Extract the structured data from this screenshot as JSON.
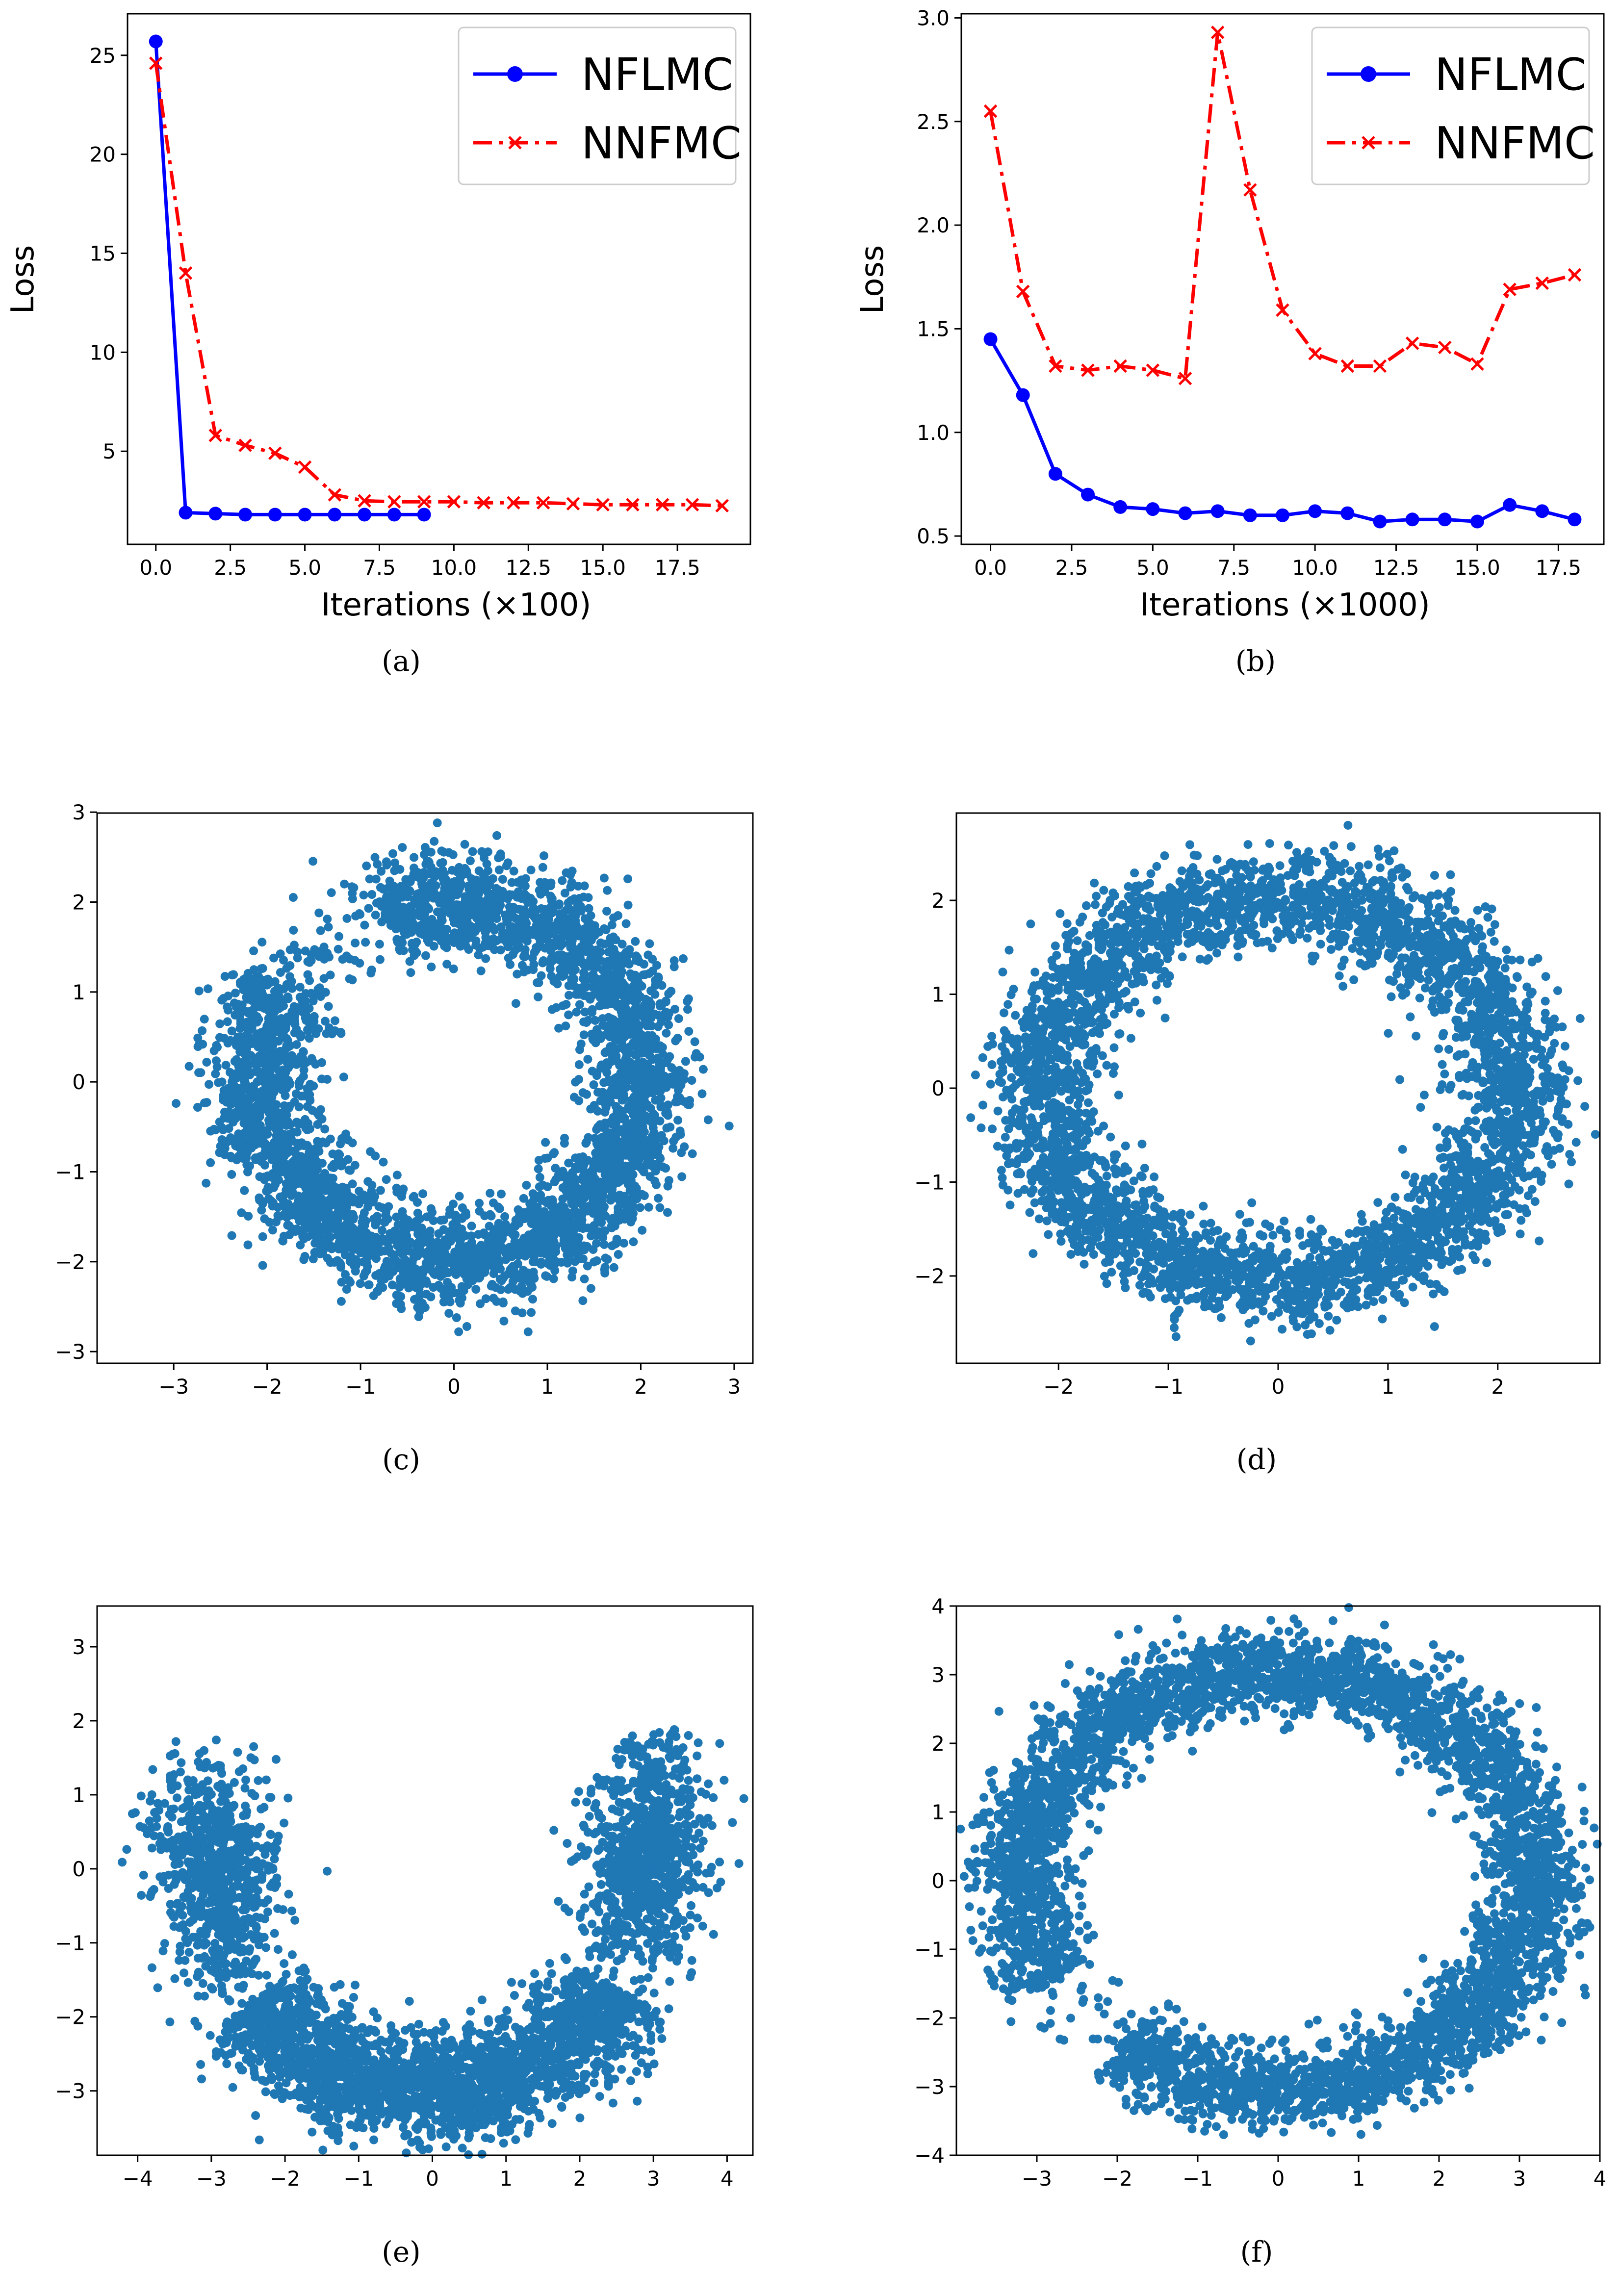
{
  "chart_data": [
    {
      "id": "a",
      "type": "line",
      "caption": "(a)",
      "xlabel": "Iterations (×100)",
      "ylabel": "Loss",
      "xlim": [
        -0.95,
        19.95
      ],
      "ylim": [
        0.3,
        27.1
      ],
      "xticks": [
        0.0,
        2.5,
        5.0,
        7.5,
        10.0,
        12.5,
        15.0,
        17.5
      ],
      "xtick_labels": [
        "0.0",
        "2.5",
        "5.0",
        "7.5",
        "10.0",
        "12.5",
        "15.0",
        "17.5"
      ],
      "yticks": [
        5,
        10,
        15,
        20,
        25
      ],
      "ytick_labels": [
        "5",
        "10",
        "15",
        "20",
        "25"
      ],
      "legend_position": "top-right",
      "series": [
        {
          "name": "NFLMC",
          "color": "#0000ff",
          "style": "solid",
          "marker": "circle",
          "x": [
            0,
            1,
            2,
            3,
            4,
            5,
            6,
            7,
            8,
            9
          ],
          "y": [
            25.7,
            1.9,
            1.85,
            1.8,
            1.8,
            1.8,
            1.8,
            1.8,
            1.8,
            1.8
          ]
        },
        {
          "name": "NNFMC",
          "color": "#ff0000",
          "style": "dashdot",
          "marker": "x",
          "x": [
            0,
            1,
            2,
            3,
            4,
            5,
            6,
            7,
            8,
            9,
            10,
            11,
            12,
            13,
            14,
            15,
            16,
            17,
            18,
            19
          ],
          "y": [
            24.6,
            14.0,
            5.8,
            5.3,
            4.9,
            4.2,
            2.8,
            2.5,
            2.45,
            2.45,
            2.45,
            2.4,
            2.4,
            2.4,
            2.35,
            2.3,
            2.3,
            2.3,
            2.3,
            2.25
          ]
        }
      ]
    },
    {
      "id": "b",
      "type": "line",
      "caption": "(b)",
      "xlabel": "Iterations (×1000)",
      "ylabel": "Loss",
      "xlim": [
        -0.9,
        18.9
      ],
      "ylim": [
        0.46,
        3.02
      ],
      "xticks": [
        0.0,
        2.5,
        5.0,
        7.5,
        10.0,
        12.5,
        15.0,
        17.5
      ],
      "xtick_labels": [
        "0.0",
        "2.5",
        "5.0",
        "7.5",
        "10.0",
        "12.5",
        "15.0",
        "17.5"
      ],
      "yticks": [
        0.5,
        1.0,
        1.5,
        2.0,
        2.5,
        3.0
      ],
      "ytick_labels": [
        "0.5",
        "1.0",
        "1.5",
        "2.0",
        "2.5",
        "3.0"
      ],
      "legend_position": "top-right",
      "series": [
        {
          "name": "NFLMC",
          "color": "#0000ff",
          "style": "solid",
          "marker": "circle",
          "x": [
            0,
            1,
            2,
            3,
            4,
            5,
            6,
            7,
            8,
            9,
            10,
            11,
            12,
            13,
            14,
            15,
            16,
            17,
            18
          ],
          "y": [
            1.45,
            1.18,
            0.8,
            0.7,
            0.64,
            0.63,
            0.61,
            0.62,
            0.6,
            0.6,
            0.62,
            0.61,
            0.57,
            0.58,
            0.58,
            0.57,
            0.65,
            0.62,
            0.58
          ]
        },
        {
          "name": "NNFMC",
          "color": "#ff0000",
          "style": "dashdot",
          "marker": "x",
          "x": [
            0,
            1,
            2,
            3,
            4,
            5,
            6,
            7,
            8,
            9,
            10,
            11,
            12,
            13,
            14,
            15,
            16,
            17,
            18
          ],
          "y": [
            2.55,
            1.68,
            1.32,
            1.3,
            1.32,
            1.3,
            1.26,
            2.93,
            2.17,
            1.59,
            1.38,
            1.32,
            1.32,
            1.43,
            1.41,
            1.33,
            1.69,
            1.72,
            1.76
          ]
        }
      ]
    },
    {
      "id": "c",
      "type": "scatter",
      "caption": "(c)",
      "xlim": [
        -3.82,
        3.2
      ],
      "ylim": [
        -3.13,
        2.99
      ],
      "xticks": [
        -3,
        -2,
        -1,
        0,
        1,
        2,
        3
      ],
      "xtick_labels": [
        "−3",
        "−2",
        "−1",
        "0",
        "1",
        "2",
        "3"
      ],
      "yticks": [
        -3,
        -2,
        -1,
        0,
        1,
        2,
        3
      ],
      "ytick_labels": [
        "−3",
        "−2",
        "−1",
        "0",
        "1",
        "2",
        "3"
      ],
      "color": "#1f77b4",
      "point_count": 4000,
      "description_shape": "noisy ring radius ~2 with gap near upper-left"
    },
    {
      "id": "d",
      "type": "scatter",
      "caption": "(d)",
      "xlim": [
        -2.93,
        2.93
      ],
      "ylim": [
        -2.93,
        2.93
      ],
      "xticks": [
        -2,
        -1,
        0,
        1,
        2
      ],
      "xtick_labels": [
        "−2",
        "−1",
        "0",
        "1",
        "2"
      ],
      "yticks": [
        -2,
        -1,
        0,
        1,
        2
      ],
      "ytick_labels": [
        "−2",
        "−1",
        "0",
        "1",
        "2"
      ],
      "color": "#1f77b4",
      "point_count": 4000,
      "description_shape": "full ring radius ~2"
    },
    {
      "id": "e",
      "type": "scatter",
      "caption": "(e)",
      "xlim": [
        -4.55,
        4.35
      ],
      "ylim": [
        -3.87,
        3.55
      ],
      "xticks": [
        -4,
        -3,
        -2,
        -1,
        0,
        1,
        2,
        3,
        4
      ],
      "xtick_labels": [
        "−4",
        "−3",
        "−2",
        "−1",
        "0",
        "1",
        "2",
        "3",
        "4"
      ],
      "yticks": [
        -3,
        -2,
        -1,
        0,
        1,
        2,
        3
      ],
      "ytick_labels": [
        "−3",
        "−2",
        "−1",
        "0",
        "1",
        "2",
        "3"
      ],
      "color": "#1f77b4",
      "point_count": 4000,
      "description_shape": "U-shaped arc open at top"
    },
    {
      "id": "f",
      "type": "scatter",
      "caption": "(f)",
      "xlim": [
        -4.0,
        4.0
      ],
      "ylim": [
        -4.0,
        4.0
      ],
      "xticks": [
        -3,
        -2,
        -1,
        0,
        1,
        2,
        3,
        4
      ],
      "xtick_labels": [
        "−3",
        "−2",
        "−1",
        "0",
        "1",
        "2",
        "3",
        "4"
      ],
      "yticks": [
        -4,
        -3,
        -2,
        -1,
        0,
        1,
        2,
        3,
        4
      ],
      "ytick_labels": [
        "−4",
        "−3",
        "−2",
        "−1",
        "0",
        "1",
        "2",
        "3",
        "4"
      ],
      "color": "#1f77b4",
      "point_count": 4500,
      "description_shape": "ring radius ~3 with notch lower-left"
    }
  ]
}
